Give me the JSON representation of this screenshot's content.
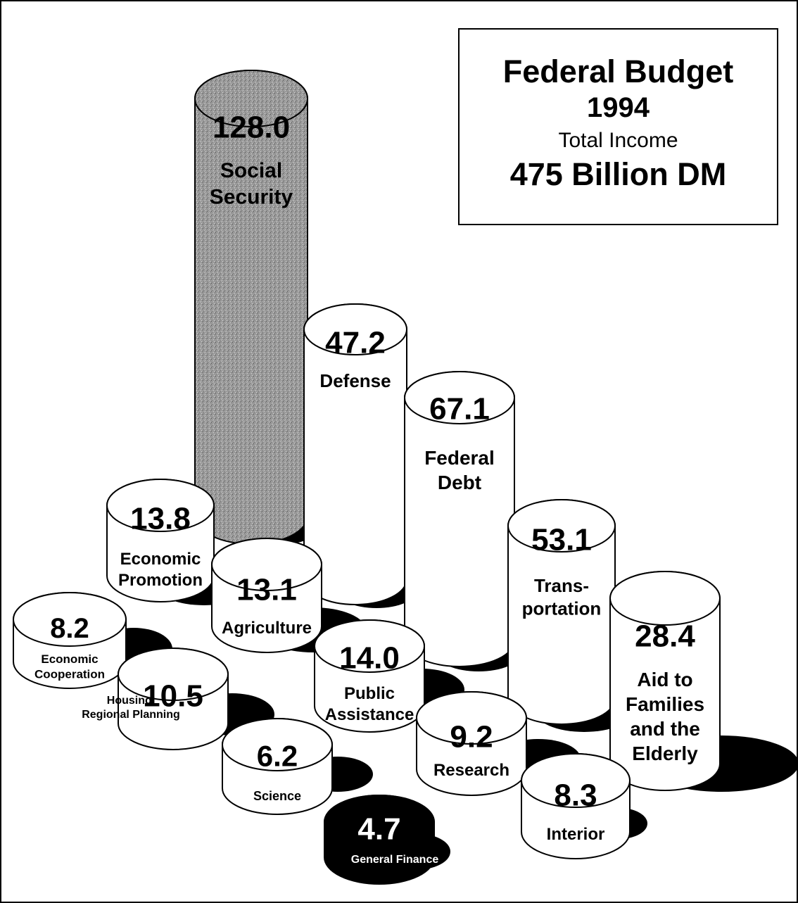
{
  "title_box": {
    "line1": "Federal Budget",
    "line2": "1994",
    "line3": "Total Income",
    "line4": "475 Billion DM"
  },
  "colors": {
    "stroke": "#000000",
    "fill": "#ffffff",
    "shadow": "#000000",
    "social_security_fill": "#9a9a9a",
    "inverted_text": "#ffffff"
  },
  "chart_data": {
    "type": "bar",
    "title": "Federal Budget 1994",
    "subtitle": "Total Income 475 Billion DM",
    "unit": "Billion DM",
    "series": [
      {
        "name": "Social Security",
        "label_lines": [
          "Social",
          "Security"
        ],
        "value": "128.0",
        "value_printed": "128.0",
        "style": "gray"
      },
      {
        "name": "Defense",
        "label_lines": [
          "Defense"
        ],
        "value": "47.2",
        "style": "white"
      },
      {
        "name": "Federal Debt",
        "label_lines": [
          "Federal",
          "Debt"
        ],
        "value": "67.1",
        "style": "white"
      },
      {
        "name": "Economic Promotion",
        "label_lines": [
          "Economic",
          "Promotion"
        ],
        "value": "13.8",
        "style": "white"
      },
      {
        "name": "Transportation",
        "label_lines": [
          "Trans-",
          "portation"
        ],
        "value": "53.1",
        "style": "white"
      },
      {
        "name": "Agriculture",
        "label_lines": [
          "Agriculture"
        ],
        "value": "13.1",
        "style": "white"
      },
      {
        "name": "Aid to Families and the Elderly",
        "label_lines": [
          "Aid to",
          "Families",
          "and the",
          "Elderly"
        ],
        "value": "28.4",
        "style": "white"
      },
      {
        "name": "Economic Cooperation",
        "label_lines": [
          "Economic",
          "Cooperation"
        ],
        "value": "8.2",
        "style": "white"
      },
      {
        "name": "Public Assistance",
        "label_lines": [
          "Public",
          "Assistance"
        ],
        "value": "14.0",
        "style": "white"
      },
      {
        "name": "Housing, Regional Planning",
        "label_lines": [
          "Housing,",
          "Regional Planning"
        ],
        "value": "10.5",
        "style": "white"
      },
      {
        "name": "Research",
        "label_lines": [
          "Research"
        ],
        "value": "9.2",
        "style": "white"
      },
      {
        "name": "Science",
        "label_lines": [
          "Science"
        ],
        "value": "6.2",
        "style": "white"
      },
      {
        "name": "Interior",
        "label_lines": [
          "Interior"
        ],
        "value": "8.3",
        "style": "white"
      },
      {
        "name": "General Finance",
        "label_lines": [
          "General Finance"
        ],
        "value": "4.7",
        "style": "black"
      }
    ]
  }
}
